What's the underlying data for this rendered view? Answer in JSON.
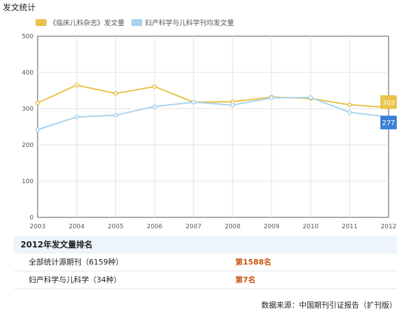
{
  "page": {
    "title": "发文统计"
  },
  "legend": {
    "items": [
      {
        "label": "《临床儿科杂志》发文量",
        "color": "#e8c24a"
      },
      {
        "label": "妇产科学与儿科学刊均发文量",
        "color": "#a8d2ef"
      }
    ]
  },
  "chart_data": {
    "type": "line",
    "title": "",
    "xlabel": "",
    "ylabel": "",
    "x": [
      "2003",
      "2004",
      "2005",
      "2006",
      "2007",
      "2008",
      "2009",
      "2010",
      "2011",
      "2012"
    ],
    "ylim": [
      0,
      500
    ],
    "yticks": [
      "0",
      "100",
      "200",
      "300",
      "400",
      "500"
    ],
    "grid": true,
    "series": [
      {
        "name": "《临床儿科杂志》发文量",
        "color": "#e8c24a",
        "values": [
          316,
          365,
          342,
          361,
          318,
          319,
          332,
          328,
          311,
          303
        ],
        "end_label": "303"
      },
      {
        "name": "妇产科学与儿科学刊均发文量",
        "color": "#a8d2ef",
        "label_color": "#3b80d6",
        "values": [
          242,
          277,
          282,
          306,
          318,
          310,
          330,
          331,
          290,
          277
        ],
        "end_label": "277"
      }
    ]
  },
  "ranking": {
    "header": "2012年发文量排名",
    "rows": [
      {
        "name": "全部统计源期刊（6159种）",
        "value": "第1588名"
      },
      {
        "name": "妇产科学与儿科学（34种）",
        "value": "第7名"
      }
    ]
  },
  "source": {
    "text": "数据来源：中国期刊引证报告（扩刊版）"
  }
}
